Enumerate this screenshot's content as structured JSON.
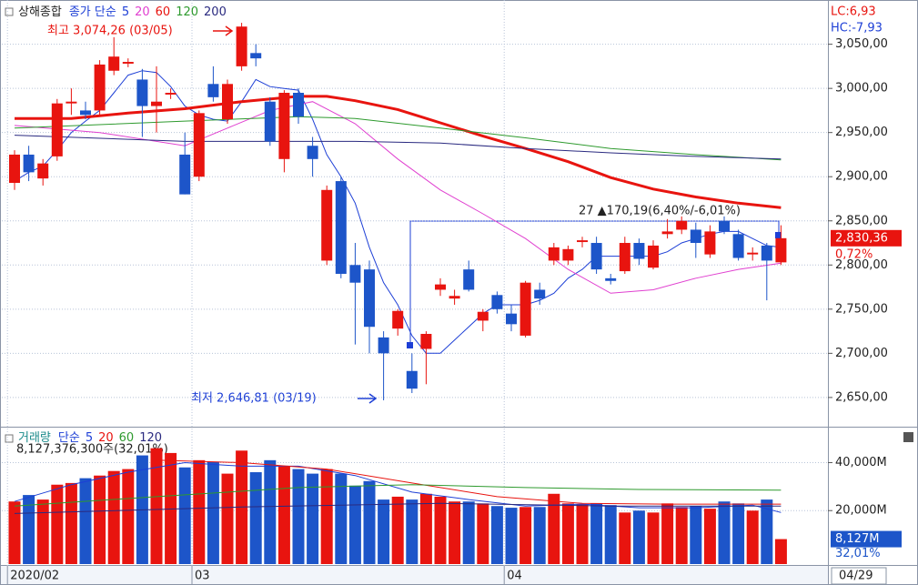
{
  "chart_data": [
    {
      "type": "candlestick",
      "title": "상해종합",
      "legend_prefix": "종가 단순",
      "categories": [
        "2020/02",
        null,
        null,
        null,
        null,
        null,
        null,
        null,
        null,
        null,
        null,
        null,
        null,
        "03",
        null,
        null,
        null,
        null,
        null,
        null,
        null,
        null,
        null,
        null,
        null,
        null,
        null,
        null,
        null,
        null,
        null,
        null,
        null,
        null,
        null,
        "04",
        null,
        null,
        null,
        null,
        null,
        null,
        null,
        null,
        null,
        null,
        null,
        null,
        null,
        null,
        null,
        null,
        null,
        null,
        null
      ],
      "open": [
        2893,
        2925,
        2898,
        2923,
        2983,
        2975,
        2975,
        3020,
        3028,
        3010,
        2980,
        2993,
        2925,
        2900,
        3005,
        2965,
        3025,
        3040,
        2985,
        2920,
        2995,
        2935,
        2805,
        2895,
        2800,
        2795,
        2718,
        2728,
        2680,
        2705,
        2772,
        2762,
        2795,
        2737,
        2766,
        2745,
        2720,
        2772,
        2805,
        2805,
        2826,
        2825,
        2785,
        2793,
        2825,
        2797,
        2835,
        2840,
        2840,
        2812,
        2850,
        2835,
        2812,
        2822,
        2803
      ],
      "high": [
        2930,
        2935,
        2920,
        2988,
        3000,
        2985,
        3032,
        3058,
        3034,
        3022,
        3025,
        3000,
        2950,
        2975,
        3025,
        3010,
        3074.26,
        3050,
        2990,
        2998,
        3000,
        2945,
        2890,
        2900,
        2825,
        2805,
        2725,
        2750,
        2700,
        2725,
        2785,
        2772,
        2805,
        2750,
        2770,
        2755,
        2782,
        2780,
        2825,
        2822,
        2832,
        2832,
        2790,
        2832,
        2830,
        2828,
        2852,
        2855,
        2848,
        2845,
        2855,
        2840,
        2820,
        2825,
        2845
      ],
      "low": [
        2885,
        2895,
        2890,
        2918,
        2970,
        2965,
        2970,
        3015,
        3024,
        2945,
        2950,
        2988,
        2880,
        2895,
        2985,
        2960,
        3020,
        3025,
        2935,
        2905,
        2960,
        2900,
        2800,
        2785,
        2710,
        2700,
        2646.81,
        2720,
        2655,
        2665,
        2765,
        2755,
        2770,
        2725,
        2745,
        2725,
        2718,
        2755,
        2800,
        2800,
        2820,
        2790,
        2778,
        2790,
        2800,
        2795,
        2830,
        2835,
        2808,
        2808,
        2835,
        2805,
        2805,
        2760,
        2800
      ],
      "close": [
        2925,
        2905,
        2915,
        2983,
        2985,
        2970,
        3027,
        3036,
        3030,
        2980,
        2985,
        2995,
        2880,
        2972,
        2990,
        3005,
        3070,
        3034,
        2940,
        2995,
        2968,
        2920,
        2885,
        2790,
        2780,
        2730,
        2700,
        2748,
        2660,
        2722,
        2778,
        2765,
        2772,
        2747,
        2750,
        2733,
        2780,
        2762,
        2820,
        2818,
        2828,
        2795,
        2782,
        2825,
        2807,
        2822,
        2838,
        2850,
        2825,
        2838,
        2838,
        2808,
        2814,
        2805,
        2830.36
      ],
      "up_color": "#e8140f",
      "down_color": "#1d55c9",
      "series": [
        {
          "name": "5",
          "color": "#1d3fd6",
          "width": 1,
          "x": [
            0,
            1,
            2,
            3,
            4,
            5,
            6,
            7,
            8,
            9,
            10,
            11,
            12,
            13,
            14,
            15,
            16,
            17,
            18,
            19,
            20,
            21,
            22,
            23,
            24,
            25,
            26,
            27,
            28,
            29,
            30,
            31,
            32,
            33,
            34,
            35,
            36,
            37,
            38,
            39,
            40,
            41,
            42,
            43,
            44,
            45,
            46,
            47,
            48,
            49,
            50,
            51,
            52,
            53,
            54
          ],
          "values": [
            2895,
            2905,
            2912,
            2930,
            2950,
            2963,
            2975,
            2995,
            3015,
            3020,
            3018,
            3002,
            2980,
            2970,
            2965,
            2963,
            2985,
            3010,
            3002,
            3000,
            2998,
            2965,
            2925,
            2900,
            2870,
            2820,
            2780,
            2755,
            2720,
            2700,
            2700,
            2715,
            2730,
            2745,
            2755,
            2755,
            2755,
            2760,
            2768,
            2785,
            2795,
            2810,
            2810,
            2810,
            2810,
            2810,
            2815,
            2825,
            2830,
            2835,
            2838,
            2838,
            2830,
            2822,
            2820
          ]
        },
        {
          "name": "20",
          "color": "#e040d0",
          "width": 1,
          "x": [
            0,
            6,
            12,
            15,
            18,
            21,
            24,
            27,
            30,
            33,
            36,
            39,
            42,
            45,
            48,
            51,
            54
          ],
          "values": [
            2958,
            2950,
            2935,
            2955,
            2975,
            2985,
            2960,
            2920,
            2885,
            2858,
            2830,
            2795,
            2768,
            2772,
            2785,
            2795,
            2802
          ]
        },
        {
          "name": "60",
          "color": "#e8140f",
          "width": 3,
          "x": [
            0,
            4,
            8,
            12,
            16,
            20,
            22,
            24,
            27,
            30,
            33,
            36,
            39,
            42,
            45,
            48,
            51,
            54
          ],
          "values": [
            2966,
            2966,
            2972,
            2977,
            2985,
            2991,
            2991,
            2986,
            2976,
            2961,
            2946,
            2932,
            2917,
            2899,
            2886,
            2877,
            2870,
            2865
          ]
        },
        {
          "name": "120",
          "color": "#2e9a2e",
          "width": 1,
          "x": [
            0,
            12,
            20,
            24,
            30,
            36,
            42,
            48,
            54
          ],
          "values": [
            2955,
            2963,
            2968,
            2966,
            2955,
            2944,
            2932,
            2925,
            2919
          ]
        },
        {
          "name": "200",
          "color": "#2a2a80",
          "width": 1,
          "x": [
            0,
            12,
            24,
            30,
            36,
            42,
            48,
            54
          ],
          "values": [
            2947,
            2940,
            2940,
            2938,
            2932,
            2927,
            2923,
            2920
          ]
        }
      ],
      "ylim": [
        2620,
        3097
      ],
      "yticks": [
        {
          "value": 3050,
          "label": "3,050,00"
        },
        {
          "value": 3000,
          "label": "3,000,00"
        },
        {
          "value": 2950,
          "label": "2,950,00"
        },
        {
          "value": 2900,
          "label": "2,900,00"
        },
        {
          "value": 2850,
          "label": "2,850,00"
        },
        {
          "value": 2800,
          "label": "2,800,00"
        },
        {
          "value": 2750,
          "label": "2,750,00"
        },
        {
          "value": 2700,
          "label": "2,700,00"
        },
        {
          "value": 2650,
          "label": "2,650,00"
        }
      ],
      "grid": true,
      "high_label": "최고 3,074,26 (03/05)",
      "low_label": "최저 2,646,81 (03/19)",
      "measure_label": "27 ▲170,19(6,40%/-6,01%)",
      "lc_label": "LC:6,93",
      "hc_label": "HC:-7,93",
      "last_price": {
        "value": 2830.36,
        "label": "2,830,36"
      },
      "last_change": "0,72%"
    },
    {
      "type": "bar",
      "title": "거래량",
      "title_color": "#1a8a8a",
      "legend_prefix": "단순",
      "values": [
        23800,
        26500,
        24600,
        30800,
        31500,
        33500,
        34600,
        36500,
        37300,
        43000,
        46000,
        44000,
        38000,
        41000,
        40400,
        35400,
        45000,
        36000,
        41000,
        38500,
        37300,
        35400,
        37300,
        35400,
        30400,
        32300,
        24600,
        25800,
        24600,
        27000,
        25800,
        23800,
        23800,
        23000,
        21900,
        21200,
        21500,
        21500,
        27000,
        23000,
        22700,
        23000,
        22300,
        19200,
        20000,
        19200,
        23000,
        21500,
        21900,
        20800,
        23800,
        23000,
        20000,
        24600,
        8127
      ],
      "series": [
        {
          "name": "5",
          "color": "#1d3fd6",
          "x": [
            0,
            4,
            8,
            12,
            16,
            20,
            24,
            28,
            32,
            36,
            40,
            44,
            48,
            52,
            54
          ],
          "values": [
            23800,
            30800,
            36000,
            40000,
            38500,
            38500,
            34600,
            27700,
            24600,
            21900,
            22700,
            21200,
            21200,
            22300,
            19200
          ]
        },
        {
          "name": "20",
          "color": "#e8140f",
          "x": [
            10,
            16,
            22,
            28,
            34,
            40,
            46,
            54
          ],
          "values": [
            41000,
            40000,
            37300,
            31500,
            25800,
            23000,
            22700,
            22700
          ]
        },
        {
          "name": "60",
          "color": "#2e9a2e",
          "x": [
            0,
            10,
            20,
            28,
            36,
            44,
            54
          ],
          "values": [
            21900,
            25800,
            29600,
            30800,
            29600,
            28800,
            28500
          ]
        },
        {
          "name": "120",
          "color": "#2a2a80",
          "x": [
            0,
            16,
            30,
            42,
            54
          ],
          "values": [
            18800,
            21500,
            23000,
            21900,
            21900
          ]
        }
      ],
      "ylim": [
        0,
        47000
      ],
      "yticks": [
        {
          "value": 40000,
          "label": "40,000M"
        },
        {
          "value": 20000,
          "label": "20,000M"
        }
      ],
      "summary": "8,127,376,300주(32,01%)",
      "last_volume": {
        "value": 8127,
        "label": "8,127M"
      },
      "last_pct": "32,01%",
      "last_date": "04/29"
    }
  ]
}
